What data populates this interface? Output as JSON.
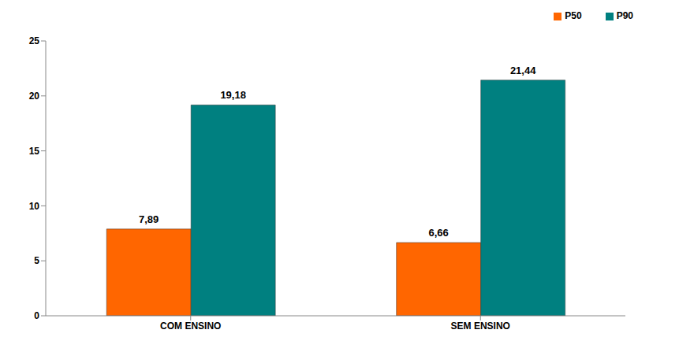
{
  "chart_data": {
    "type": "bar",
    "categories": [
      "COM ENSINO",
      "SEM ENSINO"
    ],
    "series": [
      {
        "name": "P50",
        "color": "#ff6600",
        "values": [
          7.89,
          6.66
        ],
        "value_labels": [
          "7,89",
          "6,66"
        ]
      },
      {
        "name": "P90",
        "color": "#008080",
        "values": [
          19.18,
          21.44
        ],
        "value_labels": [
          "19,18",
          "21,44"
        ]
      }
    ],
    "ylim": [
      0,
      25
    ],
    "yticks": [
      0,
      5,
      10,
      15,
      20,
      25
    ],
    "grid": false,
    "legend": "upper right",
    "data_labels": true
  }
}
